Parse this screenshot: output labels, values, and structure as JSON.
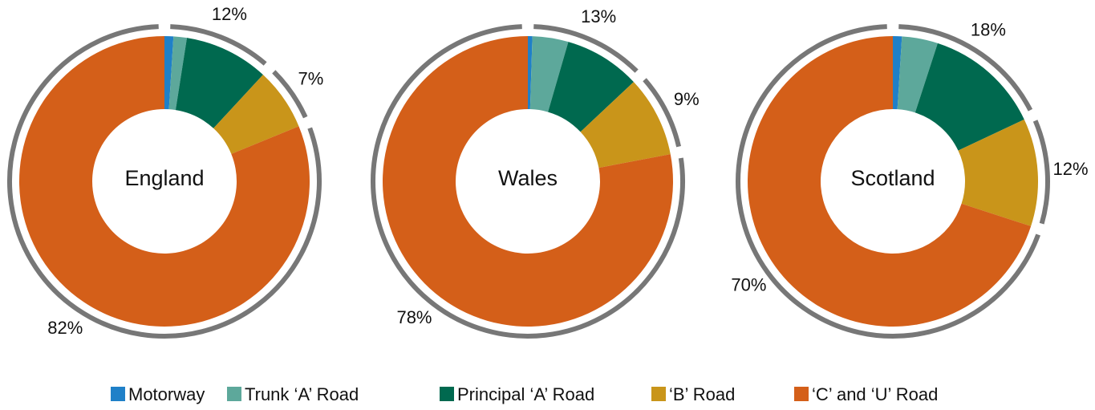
{
  "chart_data": [
    {
      "type": "pie",
      "center_label": "England",
      "categories": [
        "Motorway",
        "Trunk ‘A’ Road",
        "Principal ‘A’ Road",
        "‘B’ Road",
        "‘C’ and ‘U’ Road"
      ],
      "values": [
        1,
        1.5,
        9.5,
        7,
        82
      ],
      "colors": [
        "#1f80c8",
        "#5da89b",
        "#00694f",
        "#c9951a",
        "#d45f19"
      ],
      "outer_values": [
        12,
        7,
        82
      ],
      "outer_value_labels": [
        "12%",
        "7%",
        "82%"
      ]
    },
    {
      "type": "pie",
      "center_label": "Wales",
      "categories": [
        "Motorway",
        "Trunk ‘A’ Road",
        "Principal ‘A’ Road",
        "‘B’ Road",
        "‘C’ and ‘U’ Road"
      ],
      "values": [
        0.5,
        4,
        8.5,
        9,
        78
      ],
      "colors": [
        "#1f80c8",
        "#5da89b",
        "#00694f",
        "#c9951a",
        "#d45f19"
      ],
      "outer_values": [
        13,
        9,
        78
      ],
      "outer_value_labels": [
        "13%",
        "9%",
        "78%"
      ]
    },
    {
      "type": "pie",
      "center_label": "Scotland",
      "categories": [
        "Motorway",
        "Trunk ‘A’ Road",
        "Principal ‘A’ Road",
        "‘B’ Road",
        "‘C’ and ‘U’ Road"
      ],
      "values": [
        1,
        4,
        13,
        12,
        70
      ],
      "colors": [
        "#1f80c8",
        "#5da89b",
        "#00694f",
        "#c9951a",
        "#d45f19"
      ],
      "outer_values": [
        18,
        12,
        70
      ],
      "outer_value_labels": [
        "18%",
        "12%",
        "70%"
      ]
    }
  ]
}
